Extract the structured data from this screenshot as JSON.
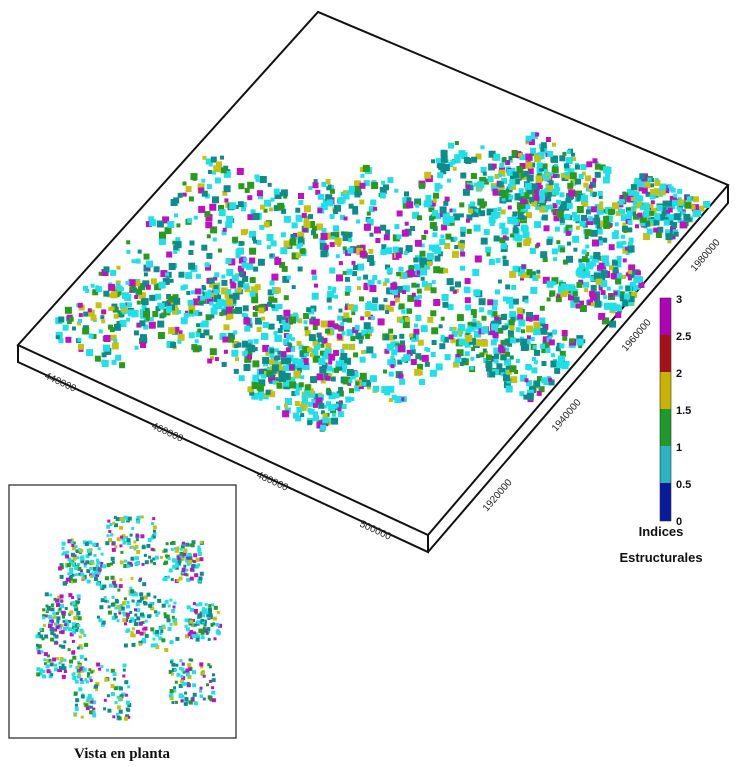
{
  "x_axis": {
    "ticks": [
      "440000",
      "460000",
      "480000",
      "500000"
    ]
  },
  "y_axis": {
    "ticks": [
      "1920000",
      "1940000",
      "1960000",
      "1980000"
    ]
  },
  "colorbar": {
    "ticks": [
      "0",
      "0.5",
      "1",
      "1.5",
      "2",
      "2.5",
      "3"
    ],
    "title_line1": "Indices",
    "title_line2": "Estructurales",
    "colors": [
      "#0a1a9c",
      "#29b4c0",
      "#1e9a2a",
      "#c8b400",
      "#a8101a",
      "#b000b8"
    ]
  },
  "inset": {
    "caption": "Vista en planta"
  },
  "palette": {
    "cyan": "#1fe0e8",
    "teal": "#0e8c8c",
    "green": "#2a9a1a",
    "yellow": "#c8c010",
    "magenta": "#c010c0"
  }
}
